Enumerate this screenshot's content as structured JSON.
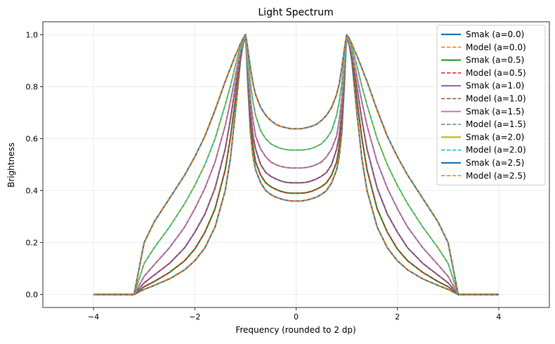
{
  "chart_data": {
    "type": "line",
    "title": "Light Spectrum",
    "xlabel": "Frequency (rounded to 2 dp)",
    "ylabel": "Brightness",
    "xlim": [
      -5,
      5
    ],
    "ylim": [
      -0.05,
      1.05
    ],
    "xticks": [
      -4,
      -2,
      0,
      2,
      4
    ],
    "xtick_labels": [
      "−4",
      "−2",
      "0",
      "2",
      "4"
    ],
    "yticks": [
      0.0,
      0.2,
      0.4,
      0.6,
      0.8,
      1.0
    ],
    "ytick_labels": [
      "0.0",
      "0.2",
      "0.4",
      "0.6",
      "0.8",
      "1.0"
    ],
    "grid": true,
    "legend_position": "top-right",
    "curve_x": [
      -4.0,
      -3.5,
      -3.2,
      -3.0,
      -2.8,
      -2.5,
      -2.2,
      -2.0,
      -1.8,
      -1.6,
      -1.4,
      -1.3,
      -1.2,
      -1.15,
      -1.1,
      -1.05,
      -1.02,
      -1.0,
      -0.98,
      -0.95,
      -0.9,
      -0.85,
      -0.8,
      -0.7,
      -0.6,
      -0.5,
      -0.4,
      -0.3,
      -0.2,
      -0.1,
      0.0,
      0.1,
      0.2,
      0.3,
      0.4,
      0.5,
      0.6,
      0.7,
      0.8,
      0.85,
      0.9,
      0.95,
      0.98,
      1.0,
      1.02,
      1.05,
      1.1,
      1.15,
      1.2,
      1.3,
      1.4,
      1.6,
      1.8,
      2.0,
      2.2,
      2.5,
      2.8,
      3.0,
      3.2,
      3.5,
      4.0
    ],
    "series": [
      {
        "name": "Smak (a=0.0)",
        "color": "#1f77b4",
        "dash": "solid",
        "values": [
          0.0,
          0.0,
          0.0,
          0.02,
          0.035,
          0.06,
          0.095,
          0.13,
          0.18,
          0.26,
          0.4,
          0.52,
          0.7,
          0.8,
          0.9,
          0.96,
          0.98,
          1.0,
          0.93,
          0.8,
          0.62,
          0.53,
          0.48,
          0.43,
          0.4,
          0.385,
          0.375,
          0.368,
          0.363,
          0.36,
          0.36,
          0.36,
          0.363,
          0.368,
          0.375,
          0.385,
          0.4,
          0.43,
          0.48,
          0.53,
          0.62,
          0.8,
          0.93,
          1.0,
          0.98,
          0.96,
          0.9,
          0.8,
          0.7,
          0.52,
          0.4,
          0.26,
          0.18,
          0.13,
          0.095,
          0.06,
          0.035,
          0.02,
          0.0,
          0.0,
          0.0
        ]
      },
      {
        "name": "Model (a=0.0)",
        "color": "#ff7f0e",
        "dash": "dashed",
        "values": [
          0.0,
          0.0,
          0.0,
          0.02,
          0.035,
          0.06,
          0.095,
          0.13,
          0.18,
          0.26,
          0.4,
          0.52,
          0.7,
          0.8,
          0.9,
          0.96,
          0.98,
          1.0,
          0.93,
          0.8,
          0.62,
          0.53,
          0.48,
          0.43,
          0.4,
          0.385,
          0.375,
          0.368,
          0.363,
          0.36,
          0.36,
          0.36,
          0.363,
          0.368,
          0.375,
          0.385,
          0.4,
          0.43,
          0.48,
          0.53,
          0.62,
          0.8,
          0.93,
          1.0,
          0.98,
          0.96,
          0.9,
          0.8,
          0.7,
          0.52,
          0.4,
          0.26,
          0.18,
          0.13,
          0.095,
          0.06,
          0.035,
          0.02,
          0.0,
          0.0,
          0.0
        ]
      },
      {
        "name": "Smak (a=0.5)",
        "color": "#2ca02c",
        "dash": "solid",
        "values": [
          0.0,
          0.0,
          0.0,
          0.03,
          0.05,
          0.085,
          0.13,
          0.175,
          0.24,
          0.33,
          0.48,
          0.6,
          0.75,
          0.83,
          0.91,
          0.96,
          0.98,
          1.0,
          0.94,
          0.82,
          0.66,
          0.57,
          0.51,
          0.46,
          0.43,
          0.415,
          0.405,
          0.397,
          0.392,
          0.39,
          0.39,
          0.39,
          0.392,
          0.397,
          0.405,
          0.415,
          0.43,
          0.46,
          0.51,
          0.57,
          0.66,
          0.82,
          0.94,
          1.0,
          0.98,
          0.96,
          0.91,
          0.83,
          0.75,
          0.6,
          0.48,
          0.33,
          0.24,
          0.175,
          0.13,
          0.085,
          0.05,
          0.03,
          0.0,
          0.0,
          0.0
        ]
      },
      {
        "name": "Model (a=0.5)",
        "color": "#d62728",
        "dash": "dashed",
        "values": [
          0.0,
          0.0,
          0.0,
          0.03,
          0.05,
          0.085,
          0.13,
          0.175,
          0.24,
          0.33,
          0.48,
          0.6,
          0.75,
          0.83,
          0.91,
          0.96,
          0.98,
          1.0,
          0.94,
          0.82,
          0.66,
          0.57,
          0.51,
          0.46,
          0.43,
          0.415,
          0.405,
          0.397,
          0.392,
          0.39,
          0.39,
          0.39,
          0.392,
          0.397,
          0.405,
          0.415,
          0.43,
          0.46,
          0.51,
          0.57,
          0.66,
          0.82,
          0.94,
          1.0,
          0.98,
          0.96,
          0.91,
          0.83,
          0.75,
          0.6,
          0.48,
          0.33,
          0.24,
          0.175,
          0.13,
          0.085,
          0.05,
          0.03,
          0.0,
          0.0,
          0.0
        ]
      },
      {
        "name": "Smak (a=1.0)",
        "color": "#9467bd",
        "dash": "solid",
        "values": [
          0.0,
          0.0,
          0.0,
          0.045,
          0.075,
          0.12,
          0.18,
          0.24,
          0.31,
          0.41,
          0.56,
          0.67,
          0.8,
          0.86,
          0.92,
          0.965,
          0.985,
          1.0,
          0.95,
          0.85,
          0.7,
          0.61,
          0.56,
          0.5,
          0.47,
          0.455,
          0.445,
          0.437,
          0.432,
          0.43,
          0.43,
          0.43,
          0.432,
          0.437,
          0.445,
          0.455,
          0.47,
          0.5,
          0.56,
          0.61,
          0.7,
          0.85,
          0.95,
          1.0,
          0.985,
          0.965,
          0.92,
          0.86,
          0.8,
          0.67,
          0.56,
          0.41,
          0.31,
          0.24,
          0.18,
          0.12,
          0.075,
          0.045,
          0.0,
          0.0,
          0.0
        ]
      },
      {
        "name": "Model (a=1.0)",
        "color": "#8c564b",
        "dash": "dashed",
        "values": [
          0.0,
          0.0,
          0.0,
          0.045,
          0.075,
          0.12,
          0.18,
          0.24,
          0.31,
          0.41,
          0.56,
          0.67,
          0.8,
          0.86,
          0.92,
          0.965,
          0.985,
          1.0,
          0.95,
          0.85,
          0.7,
          0.61,
          0.56,
          0.5,
          0.47,
          0.455,
          0.445,
          0.437,
          0.432,
          0.43,
          0.43,
          0.43,
          0.432,
          0.437,
          0.445,
          0.455,
          0.47,
          0.5,
          0.56,
          0.61,
          0.7,
          0.85,
          0.95,
          1.0,
          0.985,
          0.965,
          0.92,
          0.86,
          0.8,
          0.67,
          0.56,
          0.41,
          0.31,
          0.24,
          0.18,
          0.12,
          0.075,
          0.045,
          0.0,
          0.0,
          0.0
        ]
      },
      {
        "name": "Smak (a=1.5)",
        "color": "#e377c2",
        "dash": "solid",
        "values": [
          0.0,
          0.0,
          0.0,
          0.07,
          0.115,
          0.18,
          0.26,
          0.33,
          0.41,
          0.51,
          0.65,
          0.74,
          0.84,
          0.89,
          0.94,
          0.97,
          0.99,
          1.0,
          0.96,
          0.88,
          0.75,
          0.67,
          0.61,
          0.56,
          0.53,
          0.51,
          0.5,
          0.493,
          0.489,
          0.487,
          0.487,
          0.487,
          0.489,
          0.493,
          0.5,
          0.51,
          0.53,
          0.56,
          0.61,
          0.67,
          0.75,
          0.88,
          0.96,
          1.0,
          0.99,
          0.97,
          0.94,
          0.89,
          0.84,
          0.74,
          0.65,
          0.51,
          0.41,
          0.33,
          0.26,
          0.18,
          0.115,
          0.07,
          0.0,
          0.0,
          0.0
        ]
      },
      {
        "name": "Model (a=1.5)",
        "color": "#7f7f7f",
        "dash": "dashed",
        "values": [
          0.0,
          0.0,
          0.0,
          0.07,
          0.115,
          0.18,
          0.26,
          0.33,
          0.41,
          0.51,
          0.65,
          0.74,
          0.84,
          0.89,
          0.94,
          0.97,
          0.99,
          1.0,
          0.96,
          0.88,
          0.75,
          0.67,
          0.61,
          0.56,
          0.53,
          0.51,
          0.5,
          0.493,
          0.489,
          0.487,
          0.487,
          0.487,
          0.489,
          0.493,
          0.5,
          0.51,
          0.53,
          0.56,
          0.61,
          0.67,
          0.75,
          0.88,
          0.96,
          1.0,
          0.99,
          0.97,
          0.94,
          0.89,
          0.84,
          0.74,
          0.65,
          0.51,
          0.41,
          0.33,
          0.26,
          0.18,
          0.115,
          0.07,
          0.0,
          0.0,
          0.0
        ]
      },
      {
        "name": "Smak (a=2.0)",
        "color": "#bcbd22",
        "dash": "solid",
        "values": [
          0.0,
          0.0,
          0.0,
          0.12,
          0.18,
          0.26,
          0.35,
          0.42,
          0.5,
          0.6,
          0.73,
          0.8,
          0.88,
          0.92,
          0.95,
          0.98,
          0.99,
          1.0,
          0.97,
          0.91,
          0.81,
          0.74,
          0.69,
          0.63,
          0.6,
          0.58,
          0.57,
          0.562,
          0.558,
          0.556,
          0.556,
          0.556,
          0.558,
          0.562,
          0.57,
          0.58,
          0.6,
          0.63,
          0.69,
          0.74,
          0.81,
          0.91,
          0.97,
          1.0,
          0.99,
          0.98,
          0.95,
          0.92,
          0.88,
          0.8,
          0.73,
          0.6,
          0.5,
          0.42,
          0.35,
          0.26,
          0.18,
          0.12,
          0.0,
          0.0,
          0.0
        ]
      },
      {
        "name": "Model (a=2.0)",
        "color": "#17becf",
        "dash": "dashed",
        "values": [
          0.0,
          0.0,
          0.0,
          0.12,
          0.18,
          0.26,
          0.35,
          0.42,
          0.5,
          0.6,
          0.73,
          0.8,
          0.88,
          0.92,
          0.95,
          0.98,
          0.99,
          1.0,
          0.97,
          0.91,
          0.81,
          0.74,
          0.69,
          0.63,
          0.6,
          0.58,
          0.57,
          0.562,
          0.558,
          0.556,
          0.556,
          0.556,
          0.558,
          0.562,
          0.57,
          0.58,
          0.6,
          0.63,
          0.69,
          0.74,
          0.81,
          0.91,
          0.97,
          1.0,
          0.99,
          0.98,
          0.95,
          0.92,
          0.88,
          0.8,
          0.73,
          0.6,
          0.5,
          0.42,
          0.35,
          0.26,
          0.18,
          0.12,
          0.0,
          0.0,
          0.0
        ]
      },
      {
        "name": "Smak (a=2.5)",
        "color": "#1f77b4",
        "dash": "solid",
        "values": [
          0.0,
          0.0,
          0.0,
          0.2,
          0.28,
          0.37,
          0.46,
          0.53,
          0.61,
          0.71,
          0.82,
          0.87,
          0.92,
          0.94,
          0.965,
          0.985,
          0.995,
          1.0,
          0.98,
          0.94,
          0.87,
          0.81,
          0.77,
          0.72,
          0.69,
          0.67,
          0.655,
          0.647,
          0.642,
          0.638,
          0.638,
          0.638,
          0.642,
          0.647,
          0.655,
          0.67,
          0.69,
          0.72,
          0.77,
          0.81,
          0.87,
          0.94,
          0.98,
          1.0,
          0.995,
          0.985,
          0.965,
          0.94,
          0.92,
          0.87,
          0.82,
          0.71,
          0.61,
          0.53,
          0.46,
          0.37,
          0.28,
          0.2,
          0.0,
          0.0,
          0.0
        ]
      },
      {
        "name": "Model (a=2.5)",
        "color": "#ff7f0e",
        "dash": "dashed",
        "values": [
          0.0,
          0.0,
          0.0,
          0.2,
          0.28,
          0.37,
          0.46,
          0.53,
          0.61,
          0.71,
          0.82,
          0.87,
          0.92,
          0.94,
          0.965,
          0.985,
          0.995,
          1.0,
          0.98,
          0.94,
          0.87,
          0.81,
          0.77,
          0.72,
          0.69,
          0.67,
          0.655,
          0.647,
          0.642,
          0.638,
          0.638,
          0.638,
          0.642,
          0.647,
          0.655,
          0.67,
          0.69,
          0.72,
          0.77,
          0.81,
          0.87,
          0.94,
          0.98,
          1.0,
          0.995,
          0.985,
          0.965,
          0.94,
          0.92,
          0.87,
          0.82,
          0.71,
          0.61,
          0.53,
          0.46,
          0.37,
          0.28,
          0.2,
          0.0,
          0.0,
          0.0
        ]
      }
    ]
  }
}
